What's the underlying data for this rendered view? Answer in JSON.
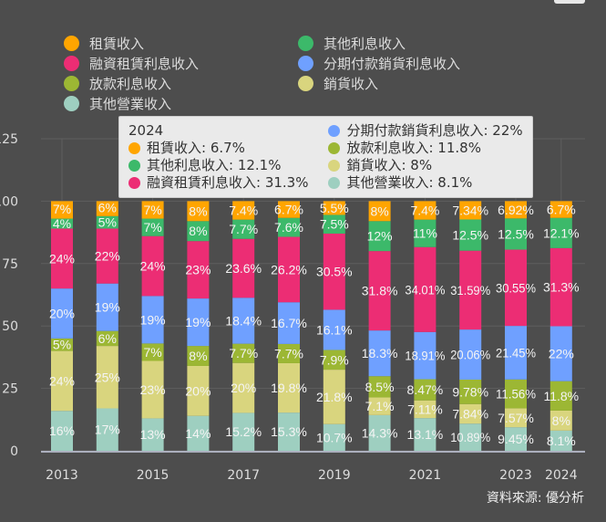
{
  "chart_data": {
    "type": "bar",
    "stacked": true,
    "categories": [
      "2013",
      "2014",
      "2015",
      "2016",
      "2017",
      "2018",
      "2019",
      "2020",
      "2021",
      "2022",
      "2023",
      "2024"
    ],
    "x_tick_labels": [
      "2013",
      "2015",
      "2017",
      "2019",
      "2021",
      "2023",
      "2024"
    ],
    "y_tick_labels": [
      "0",
      "25",
      "50",
      "75",
      "100",
      "125"
    ],
    "ylim": [
      0,
      125
    ],
    "grid": true,
    "legend_position": "top",
    "series": [
      {
        "name": "其他營業收入",
        "color": "#9ecfc0",
        "values": [
          16,
          17,
          13,
          14,
          15.2,
          15.3,
          10.7,
          14.3,
          13.1,
          10.89,
          9.45,
          8.1
        ],
        "labels": [
          "16%",
          "17%",
          "13%",
          "14%",
          "15.2%",
          "15.3%",
          "10.7%",
          "14.3%",
          "13.1%",
          "10.89%",
          "9.45%",
          "8.1%"
        ]
      },
      {
        "name": "銷貨收入",
        "color": "#d9d57e",
        "values": [
          24,
          25,
          23,
          20,
          20,
          19.8,
          21.8,
          7.1,
          7.11,
          7.84,
          7.57,
          8
        ],
        "labels": [
          "24%",
          "25%",
          "23%",
          "20%",
          "20%",
          "19.8%",
          "21.8%",
          "7.1%",
          "7.11%",
          "7.84%",
          "7.57%",
          "8%"
        ]
      },
      {
        "name": "放款利息收入",
        "color": "#9cb734",
        "values": [
          5,
          6,
          7,
          8,
          7.7,
          7.7,
          7.9,
          8.5,
          8.47,
          9.78,
          11.56,
          11.8
        ],
        "labels": [
          "5%",
          "6%",
          "7%",
          "8%",
          "7.7%",
          "7.7%",
          "7.9%",
          "8.5%",
          "8.47%",
          "9.78%",
          "11.56%",
          "11.8%"
        ]
      },
      {
        "name": "分期付款銷貨利息收入",
        "color": "#6fa0ff",
        "values": [
          20,
          19,
          19,
          19,
          18.4,
          16.7,
          16.1,
          18.3,
          18.91,
          20.06,
          21.45,
          22
        ],
        "labels": [
          "20%",
          "19%",
          "19%",
          "19%",
          "18.4%",
          "16.7%",
          "16.1%",
          "18.3%",
          "18.91%",
          "20.06%",
          "21.45%",
          "22%"
        ]
      },
      {
        "name": "融資租賃利息收入",
        "color": "#ec2d74",
        "values": [
          24,
          22,
          24,
          23,
          23.6,
          26.2,
          30.5,
          31.8,
          34.01,
          31.59,
          30.55,
          31.3
        ],
        "labels": [
          "24%",
          "22%",
          "24%",
          "23%",
          "23.6%",
          "26.2%",
          "30.5%",
          "31.8%",
          "34.01%",
          "31.59%",
          "30.55%",
          "31.3%"
        ]
      },
      {
        "name": "其他利息收入",
        "color": "#3cb96a",
        "values": [
          4,
          5,
          7,
          8,
          7.7,
          7.6,
          7.5,
          12,
          11,
          12.5,
          12.5,
          12.1
        ],
        "labels": [
          "4%",
          "5%",
          "7%",
          "8%",
          "7.7%",
          "7.6%",
          "7.5%",
          "12%",
          "11%",
          "12.5%",
          "12.5%",
          "12.1%"
        ]
      },
      {
        "name": "租賃收入",
        "color": "#ffa500",
        "values": [
          7,
          6,
          7,
          8,
          7.4,
          6.7,
          5.5,
          8,
          7.4,
          7.34,
          6.92,
          6.7
        ],
        "labels": [
          "7%",
          "6%",
          "7%",
          "8%",
          "7.4%",
          "6.7%",
          "5.5%",
          "8%",
          "7.4%",
          "7.34%",
          "6.92%",
          "6.7%"
        ]
      }
    ]
  },
  "legend": [
    {
      "name": "租賃收入",
      "color": "#ffa500"
    },
    {
      "name": "融資租賃利息收入",
      "color": "#ec2d74"
    },
    {
      "name": "放款利息收入",
      "color": "#9cb734"
    },
    {
      "name": "其他營業收入",
      "color": "#9ecfc0"
    },
    {
      "name": "其他利息收入",
      "color": "#3cb96a"
    },
    {
      "name": "分期付款銷貨利息收入",
      "color": "#6fa0ff"
    },
    {
      "name": "銷貨收入",
      "color": "#d9d57e"
    }
  ],
  "tooltip": {
    "title": "2024",
    "rows": [
      {
        "text": "租賃收入: 6.7%",
        "color": "#ffa500"
      },
      {
        "text": "其他利息收入: 12.1%",
        "color": "#3cb96a"
      },
      {
        "text": "融資租賃利息收入: 31.3%",
        "color": "#ec2d74"
      },
      {
        "text": "分期付款銷貨利息收入: 22%",
        "color": "#6fa0ff"
      },
      {
        "text": "放款利息收入: 11.8%",
        "color": "#9cb734"
      },
      {
        "text": "銷貨收入: 8%",
        "color": "#d9d57e"
      },
      {
        "text": "其他營業收入: 8.1%",
        "color": "#9ecfc0"
      }
    ]
  },
  "source": "資料來源: 優分析"
}
